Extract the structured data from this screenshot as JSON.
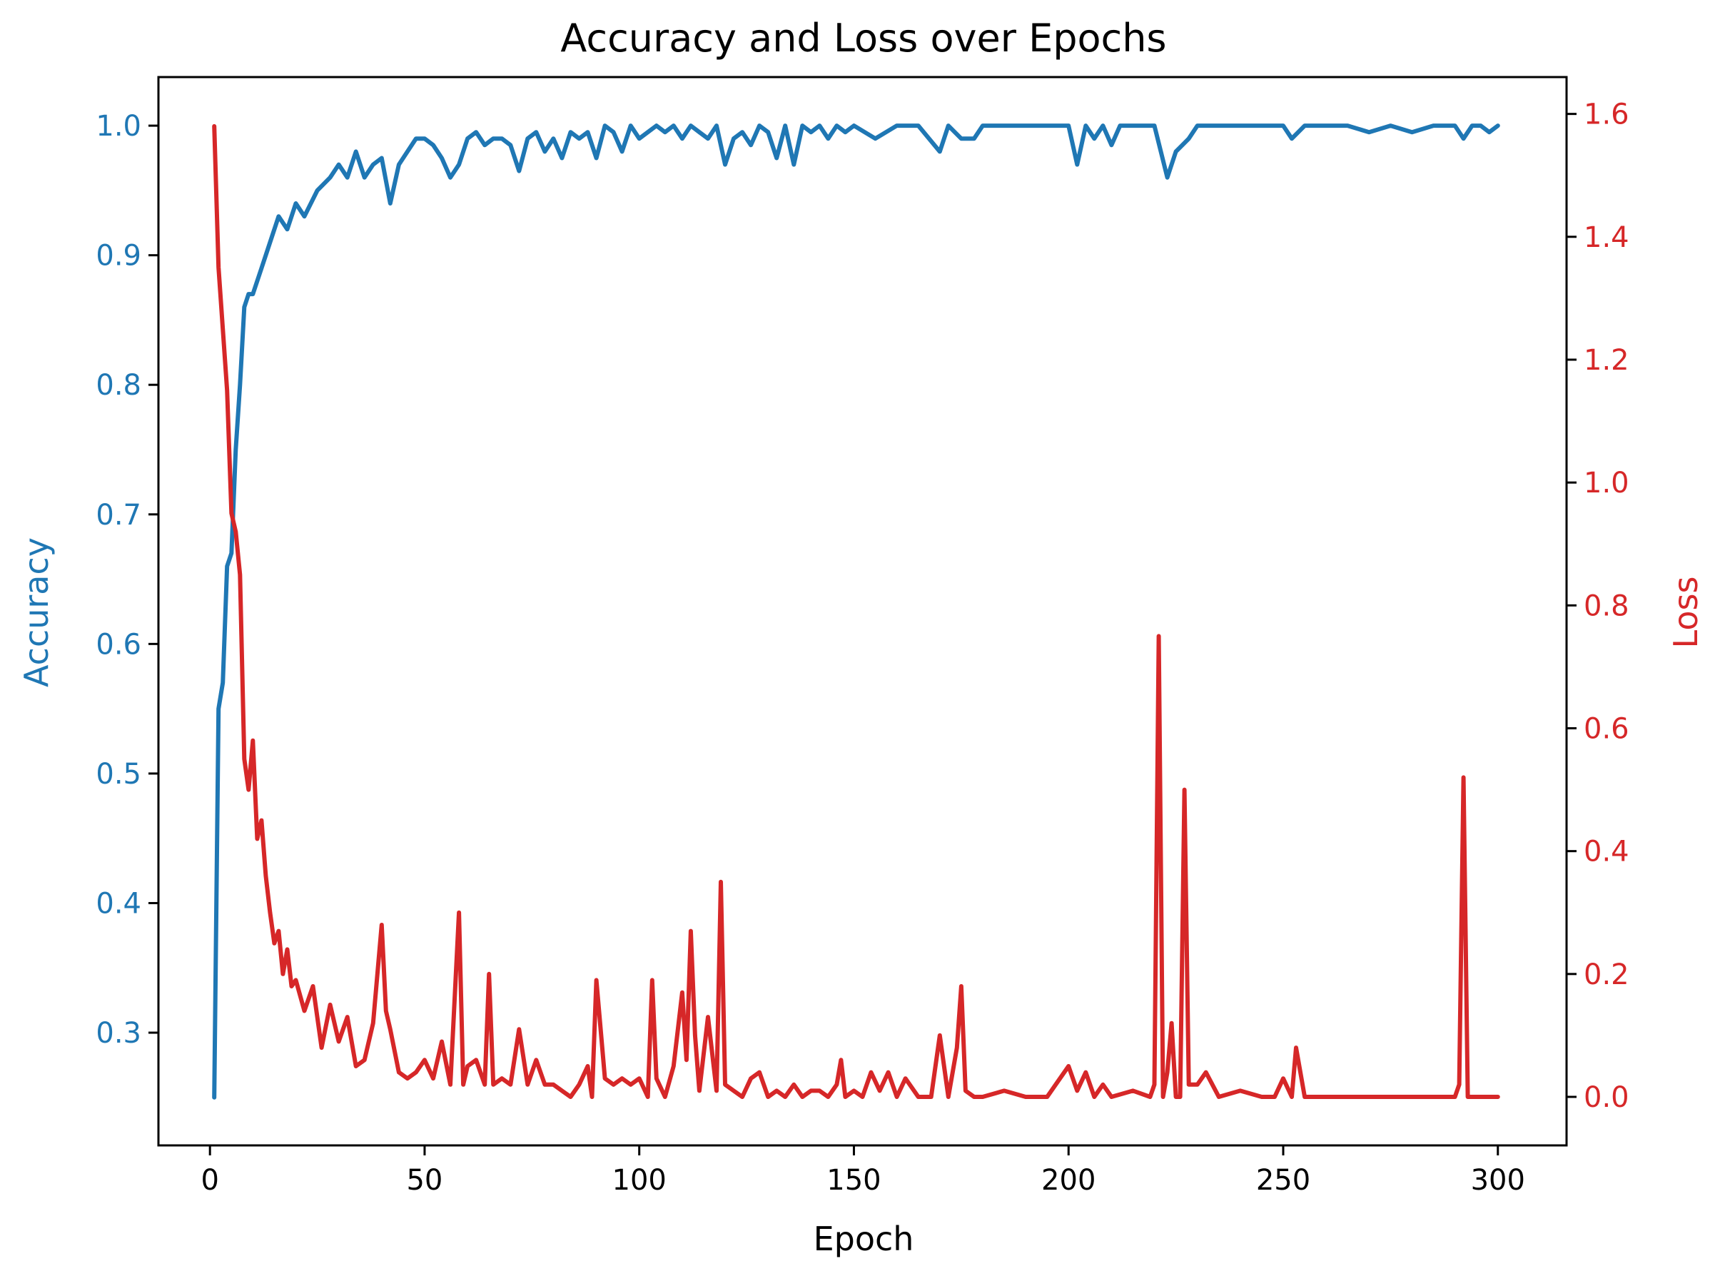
{
  "chart_data": {
    "type": "line",
    "title": "Accuracy and Loss over Epochs",
    "xlabel": "Epoch",
    "xlim": [
      -12,
      316
    ],
    "xticks": [
      0,
      50,
      100,
      150,
      200,
      250,
      300
    ],
    "grid": false,
    "y_left": {
      "label": "Accuracy",
      "color": "#1f77b4",
      "lim": [
        0.213,
        1.0375
      ],
      "ticks": [
        0.3,
        0.4,
        0.5,
        0.6,
        0.7,
        0.8,
        0.9,
        1.0
      ]
    },
    "y_right": {
      "label": "Loss",
      "color": "#d62728",
      "lim": [
        -0.079,
        1.66
      ],
      "ticks": [
        0.0,
        0.2,
        0.4,
        0.6,
        0.8,
        1.0,
        1.2,
        1.4,
        1.6
      ]
    },
    "series": [
      {
        "name": "Accuracy",
        "axis": "left",
        "color": "#1f77b4",
        "x": [
          1,
          2,
          3,
          4,
          5,
          6,
          7,
          8,
          9,
          10,
          12,
          14,
          16,
          18,
          20,
          22,
          25,
          28,
          30,
          32,
          34,
          36,
          38,
          40,
          42,
          44,
          46,
          48,
          50,
          52,
          54,
          56,
          58,
          60,
          62,
          64,
          66,
          68,
          70,
          72,
          74,
          76,
          78,
          80,
          82,
          84,
          86,
          88,
          90,
          92,
          94,
          96,
          98,
          100,
          102,
          104,
          106,
          108,
          110,
          112,
          114,
          116,
          118,
          120,
          122,
          124,
          126,
          128,
          130,
          132,
          134,
          136,
          138,
          140,
          142,
          144,
          146,
          148,
          150,
          155,
          160,
          165,
          170,
          172,
          175,
          178,
          180,
          185,
          190,
          195,
          200,
          202,
          204,
          206,
          208,
          210,
          212,
          215,
          220,
          223,
          225,
          228,
          230,
          235,
          240,
          245,
          250,
          252,
          255,
          260,
          265,
          270,
          275,
          280,
          285,
          290,
          292,
          294,
          296,
          298,
          300
        ],
        "y": [
          0.25,
          0.55,
          0.57,
          0.66,
          0.67,
          0.75,
          0.8,
          0.86,
          0.87,
          0.87,
          0.89,
          0.91,
          0.93,
          0.92,
          0.94,
          0.93,
          0.95,
          0.96,
          0.97,
          0.96,
          0.98,
          0.96,
          0.97,
          0.975,
          0.94,
          0.97,
          0.98,
          0.99,
          0.99,
          0.985,
          0.975,
          0.96,
          0.97,
          0.99,
          0.995,
          0.985,
          0.99,
          0.99,
          0.985,
          0.965,
          0.99,
          0.995,
          0.98,
          0.99,
          0.975,
          0.995,
          0.99,
          0.995,
          0.975,
          1.0,
          0.995,
          0.98,
          1.0,
          0.99,
          0.995,
          1.0,
          0.995,
          1.0,
          0.99,
          1.0,
          0.995,
          0.99,
          1.0,
          0.97,
          0.99,
          0.995,
          0.985,
          1.0,
          0.995,
          0.975,
          1.0,
          0.97,
          1.0,
          0.995,
          1.0,
          0.99,
          1.0,
          0.995,
          1.0,
          0.99,
          1.0,
          1.0,
          0.98,
          1.0,
          0.99,
          0.99,
          1.0,
          1.0,
          1.0,
          1.0,
          1.0,
          0.97,
          1.0,
          0.99,
          1.0,
          0.985,
          1.0,
          1.0,
          1.0,
          0.96,
          0.98,
          0.99,
          1.0,
          1.0,
          1.0,
          1.0,
          1.0,
          0.99,
          1.0,
          1.0,
          1.0,
          0.995,
          1.0,
          0.995,
          1.0,
          1.0,
          0.99,
          1.0,
          1.0,
          0.995,
          1.0
        ]
      },
      {
        "name": "Loss",
        "axis": "right",
        "color": "#d62728",
        "x": [
          1,
          2,
          3,
          4,
          5,
          6,
          7,
          8,
          9,
          10,
          11,
          12,
          13,
          14,
          15,
          16,
          17,
          18,
          19,
          20,
          22,
          24,
          26,
          28,
          30,
          32,
          34,
          36,
          38,
          40,
          41,
          42,
          44,
          46,
          48,
          50,
          52,
          54,
          56,
          58,
          59,
          60,
          62,
          64,
          65,
          66,
          68,
          70,
          72,
          74,
          76,
          78,
          80,
          82,
          84,
          86,
          88,
          89,
          90,
          92,
          94,
          96,
          98,
          100,
          102,
          103,
          104,
          106,
          108,
          110,
          111,
          112,
          113,
          114,
          116,
          118,
          119,
          120,
          122,
          124,
          126,
          128,
          130,
          132,
          134,
          136,
          138,
          140,
          142,
          144,
          146,
          147,
          148,
          150,
          152,
          154,
          156,
          158,
          160,
          162,
          165,
          168,
          170,
          172,
          174,
          175,
          176,
          178,
          180,
          185,
          190,
          195,
          200,
          202,
          204,
          206,
          208,
          210,
          215,
          219,
          220,
          221,
          222,
          223,
          224,
          225,
          226,
          227,
          228,
          230,
          232,
          235,
          240,
          245,
          248,
          250,
          252,
          253,
          255,
          260,
          270,
          280,
          290,
          291,
          292,
          293,
          294,
          295,
          298,
          300
        ],
        "y": [
          1.58,
          1.35,
          1.25,
          1.15,
          0.95,
          0.92,
          0.85,
          0.55,
          0.5,
          0.58,
          0.42,
          0.45,
          0.36,
          0.3,
          0.25,
          0.27,
          0.2,
          0.24,
          0.18,
          0.19,
          0.14,
          0.18,
          0.08,
          0.15,
          0.09,
          0.13,
          0.05,
          0.06,
          0.12,
          0.28,
          0.14,
          0.11,
          0.04,
          0.03,
          0.04,
          0.06,
          0.03,
          0.09,
          0.02,
          0.3,
          0.02,
          0.05,
          0.06,
          0.02,
          0.2,
          0.02,
          0.03,
          0.02,
          0.11,
          0.02,
          0.06,
          0.02,
          0.02,
          0.01,
          0.0,
          0.02,
          0.05,
          0.0,
          0.19,
          0.03,
          0.02,
          0.03,
          0.02,
          0.03,
          0.0,
          0.19,
          0.03,
          0.0,
          0.05,
          0.17,
          0.06,
          0.27,
          0.1,
          0.01,
          0.13,
          0.01,
          0.35,
          0.02,
          0.01,
          0.0,
          0.03,
          0.04,
          0.0,
          0.01,
          0.0,
          0.02,
          0.0,
          0.01,
          0.01,
          0.0,
          0.02,
          0.06,
          0.0,
          0.01,
          0.0,
          0.04,
          0.01,
          0.04,
          0.0,
          0.03,
          0.0,
          0.0,
          0.1,
          0.0,
          0.08,
          0.18,
          0.01,
          0.0,
          0.0,
          0.01,
          0.0,
          0.0,
          0.05,
          0.01,
          0.04,
          0.0,
          0.02,
          0.0,
          0.01,
          0.0,
          0.02,
          0.75,
          0.0,
          0.04,
          0.12,
          0.0,
          0.0,
          0.5,
          0.02,
          0.02,
          0.04,
          0.0,
          0.01,
          0.0,
          0.0,
          0.03,
          0.0,
          0.08,
          0.0,
          0.0,
          0.0,
          0.0,
          0.0,
          0.02,
          0.52,
          0.0,
          0.0,
          0.0,
          0.0,
          0.0
        ]
      }
    ]
  }
}
